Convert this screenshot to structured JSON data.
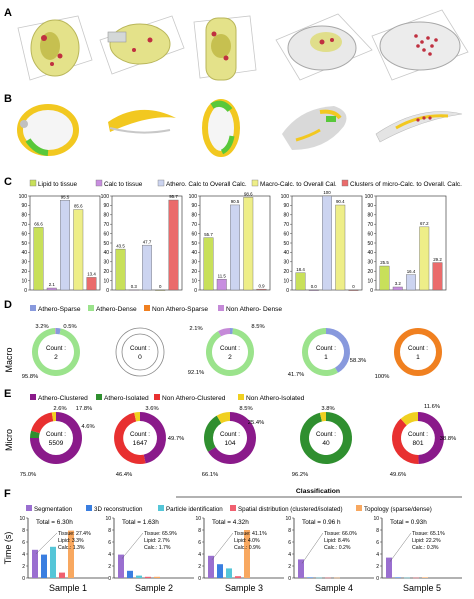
{
  "panel_letters": [
    "A",
    "B",
    "C",
    "D",
    "E",
    "F"
  ],
  "colors": {
    "lipid": "#c8e05a",
    "calc": "#c88ee0",
    "athero": "#ccd4f0",
    "macro": "#eeee88",
    "clusters": "#ea6b6b",
    "athero_sparse": "#8899dd",
    "athero_dense": "#9be38c",
    "non_athero_sparse": "#f08020",
    "non_athero_dense": "#c58ad8",
    "athero_clustered": "#8a1a8a",
    "athero_isolated": "#2f8f2f",
    "non_athero_clustered": "#e83030",
    "non_athero_isolated": "#f0d020",
    "segmentation": "#9a6fd0",
    "recon": "#3a7ee0",
    "particle": "#55c6d8",
    "spatial": "#f06070",
    "topology": "#f8a860",
    "tissue_yellow": "#f2c820",
    "tissue_green": "#58c83a"
  },
  "panel_c": {
    "legend": [
      "Lipid to tissue",
      "Calc to tissue",
      "Athero. Calc to Overall Calc.",
      "Macro-Calc. to Overall Cal.",
      "Clusters of micro-Calc. to Overall. Calc."
    ],
    "y_ticks": [
      "100",
      "90",
      "80",
      "70",
      "60",
      "50",
      "40",
      "30",
      "20",
      "10",
      "0"
    ]
  },
  "panel_d": {
    "side_label": "Macro",
    "legend": [
      "Athero-Sparse",
      "Athero-Dense",
      "Non Athero-Sparse",
      "Non Athero- Dense"
    ],
    "count_word": "Count :"
  },
  "panel_e": {
    "side_label": "Micro",
    "legend": [
      "Athero-Clustered",
      "Athero-Isolated",
      "Non Athero-Clustered",
      "Non Athero-Isolated"
    ],
    "count_word": "Count :"
  },
  "panel_f": {
    "header": "Classification",
    "legend": [
      "Segmentation",
      "3D reconstruction",
      "Particle identification",
      "Spatial distribution (clustered/isolated)",
      "Topology (sparse/dense)"
    ],
    "y_label": "Time (s)",
    "y_ticks": [
      "10",
      "8",
      "6",
      "4",
      "2",
      "0"
    ]
  },
  "chart_data": [
    {
      "type": "bar",
      "panel": "C",
      "series_names": [
        "Lipid to tissue",
        "Calc to tissue",
        "Athero. Calc to Overall Calc.",
        "Macro-Calc. to Overall Cal.",
        "Clusters of micro-Calc. to Overall. Calc."
      ],
      "ylim": [
        0,
        100
      ],
      "samples": [
        {
          "values": [
            66.6,
            2.1,
            95.5,
            85.6,
            13.4
          ],
          "labels": [
            "66.6",
            "2.1",
            "95.5",
            "85.6",
            "13.4"
          ]
        },
        {
          "values": [
            43.5,
            0.3,
            47.7,
            0,
            95.7
          ],
          "labels": [
            "43.5",
            "0.3",
            "47.7",
            "0",
            "95.7"
          ]
        },
        {
          "values": [
            55.7,
            11.5,
            90.5,
            98.6,
            0.9
          ],
          "labels": [
            "55.7",
            "11.5",
            "90.5",
            "98.6",
            "0.9"
          ]
        },
        {
          "values": [
            18.4,
            0.0,
            100,
            90.4,
            0
          ],
          "labels": [
            "18.4",
            "0.0",
            "100",
            "90.4",
            "0"
          ]
        },
        {
          "values": [
            25.5,
            3.2,
            16.4,
            67.2,
            29.2
          ],
          "labels": [
            "25.5",
            "3.2",
            "16.4",
            "67.2",
            "29.2"
          ]
        }
      ]
    },
    {
      "type": "pie",
      "panel": "D",
      "categories": [
        "Athero-Sparse",
        "Athero-Dense",
        "Non Athero-Sparse",
        "Non Athero- Dense"
      ],
      "samples": [
        {
          "count": "2",
          "values": [
            3.2,
            95.8,
            0,
            0.5
          ],
          "labels": [
            "3.2%",
            "95.8%",
            "",
            "0.5%"
          ]
        },
        {
          "count": "0",
          "values": [
            0,
            0,
            0,
            0
          ],
          "labels": [
            "",
            "",
            "",
            ""
          ]
        },
        {
          "count": "2",
          "values": [
            2.1,
            92.1,
            0,
            8.5
          ],
          "labels": [
            "2.1%",
            "92.1%",
            "",
            "8.5%"
          ]
        },
        {
          "count": "1",
          "values": [
            41.7,
            58.3,
            0,
            0
          ],
          "labels": [
            "41.7%",
            "58.3%",
            "",
            ""
          ]
        },
        {
          "count": "1",
          "values": [
            0,
            0,
            100,
            0
          ],
          "labels": [
            "",
            "",
            "100%",
            ""
          ]
        }
      ]
    },
    {
      "type": "pie",
      "panel": "E",
      "categories": [
        "Athero-Clustered",
        "Athero-Isolated",
        "Non Athero-Clustered",
        "Non Athero-Isolated"
      ],
      "samples": [
        {
          "count": "5509",
          "values": [
            75.0,
            4.6,
            17.8,
            2.6
          ],
          "labels": [
            "75.0%",
            "4.6%",
            "17.8%",
            "2.6%"
          ]
        },
        {
          "count": "1647",
          "values": [
            46.4,
            0,
            49.7,
            3.6
          ],
          "labels": [
            "46.4%",
            "",
            "49.7%",
            "3.6%"
          ]
        },
        {
          "count": "104",
          "values": [
            66.1,
            25.4,
            0,
            8.5
          ],
          "labels": [
            "66.1%",
            "25.4%",
            "",
            "8.5%"
          ]
        },
        {
          "count": "40",
          "values": [
            0,
            96.2,
            0,
            3.8
          ],
          "labels": [
            "",
            "96.2%",
            "",
            "3.8%"
          ]
        },
        {
          "count": "801",
          "values": [
            49.6,
            0,
            38.8,
            11.6
          ],
          "labels": [
            "49.6%",
            "",
            "38.8%",
            "11.6%"
          ]
        }
      ]
    },
    {
      "type": "bar",
      "panel": "F",
      "series_names": [
        "Segmentation",
        "3D reconstruction",
        "Particle identification",
        "Spatial distribution (clustered/isolated)",
        "Topology (sparse/dense)"
      ],
      "ylim": [
        0,
        10
      ],
      "samples": [
        {
          "name": "Sample 1",
          "total": "Total = 6.30h",
          "stats": [
            "Tissue: 27.4%",
            "Lipid: 3.3%",
            "Calc.: 1.3%"
          ],
          "values": [
            4.7,
            3.9,
            5.2,
            0.9,
            7.9
          ]
        },
        {
          "name": "Sample 2",
          "total": "Total = 1.63h",
          "stats": [
            "Tissue: 65.9%",
            "Lipid: 2.7%",
            "Calc.: 1.7%"
          ],
          "values": [
            3.9,
            1.2,
            0.4,
            0.2,
            0.2
          ]
        },
        {
          "name": "Sample 3",
          "total": "Total = 4.32h",
          "stats": [
            "Tissue: 41.1%",
            "Lipid: 4.0%",
            "Calc.: 0.9%"
          ],
          "values": [
            3.7,
            2.3,
            1.6,
            0.3,
            8.0
          ]
        },
        {
          "name": "Sample 4",
          "total": "Total = 0.96 h",
          "stats": [
            "Tissue: 66.0%",
            "Lipid: 8.4%",
            "Calc.: 0.2%"
          ],
          "values": [
            3.1,
            0.1,
            0.05,
            0.05,
            0.05
          ]
        },
        {
          "name": "Sample 5",
          "total": "Total = 0.93h",
          "stats": [
            "Tissue: 65.1%",
            "Lipid: 22.2%",
            "Calc.: 0.3%"
          ],
          "values": [
            3.4,
            0.1,
            0.05,
            0.05,
            0.1
          ]
        }
      ]
    }
  ]
}
